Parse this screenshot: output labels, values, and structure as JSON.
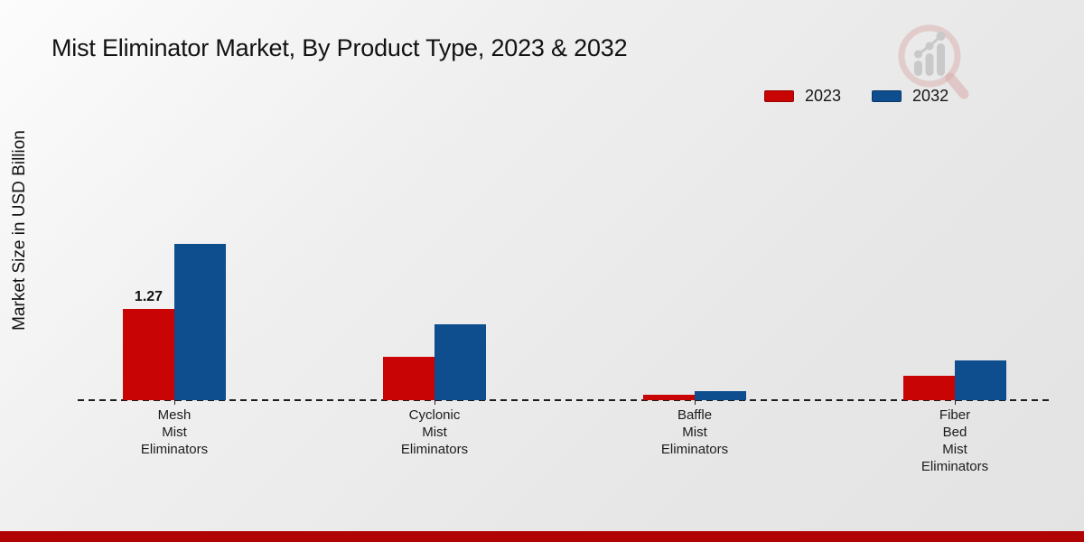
{
  "page": {
    "title": "Mist Eliminator Market, By Product Type, 2023 & 2032",
    "ylabel": "Market Size in USD Billion",
    "footer_bar_color": "#b00303",
    "watermark_icon": "magnifier-bar-chart-logo"
  },
  "chart_data": {
    "type": "bar",
    "title": "Mist Eliminator Market, By Product Type, 2023 & 2032",
    "xlabel": "",
    "ylabel": "Market Size in USD Billion",
    "unit": "USD Billion",
    "categories": [
      "Mesh Mist Eliminators",
      "Cyclonic Mist Eliminators",
      "Baffle Mist Eliminators",
      "Fiber Bed Mist Eliminators"
    ],
    "category_label_lines": [
      [
        "Mesh",
        "Mist",
        "Eliminators"
      ],
      [
        "Cyclonic",
        "Mist",
        "Eliminators"
      ],
      [
        "Baffle",
        "Mist",
        "Eliminators"
      ],
      [
        "Fiber",
        "Bed",
        "Mist",
        "Eliminators"
      ]
    ],
    "series": [
      {
        "name": "2023",
        "color": "#c80404",
        "values": [
          1.27,
          0.6,
          0.08,
          0.34
        ]
      },
      {
        "name": "2032",
        "color": "#0e4d8e",
        "values": [
          2.18,
          1.06,
          0.13,
          0.55
        ]
      }
    ],
    "annotations": [
      {
        "text": "1.27",
        "category_index": 0,
        "series_index": 0
      }
    ],
    "ylim": [
      0,
      2.5
    ],
    "grid": false,
    "axis_line_style": "dashed",
    "legend_position": "top-right"
  }
}
